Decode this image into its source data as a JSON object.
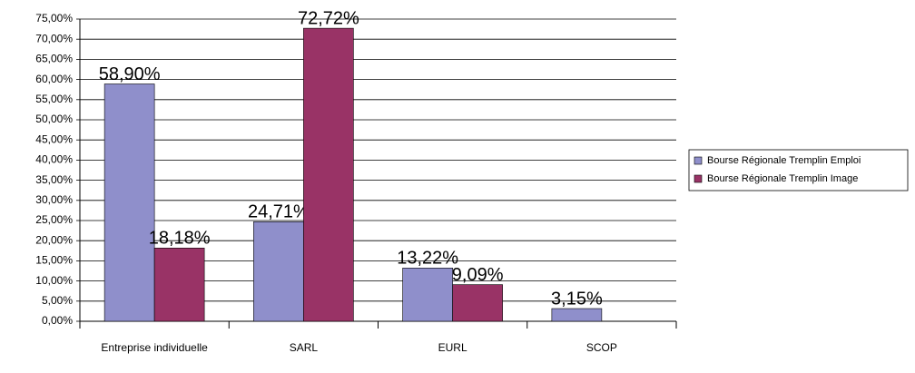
{
  "chart_data": {
    "type": "bar",
    "categories": [
      "Entreprise individuelle",
      "SARL",
      "EURL",
      "SCOP"
    ],
    "series": [
      {
        "name": "Bourse Régionale Tremplin Emploi",
        "color": "#8f8fcb",
        "values": [
          58.9,
          24.71,
          13.22,
          3.15
        ],
        "value_labels": [
          "58,90%",
          "24,71%",
          "13,22%",
          "3,15%"
        ]
      },
      {
        "name": "Bourse Régionale Tremplin Image",
        "color": "#993366",
        "values": [
          18.18,
          72.72,
          9.09,
          null
        ],
        "value_labels": [
          "18,18%",
          "72,72%",
          "9,09%",
          null
        ]
      }
    ],
    "ylim": [
      0,
      75
    ],
    "yticks": [
      {
        "value": 0,
        "label": "0,00%"
      },
      {
        "value": 5,
        "label": "5,00%"
      },
      {
        "value": 10,
        "label": "10,00%"
      },
      {
        "value": 15,
        "label": "15,00%"
      },
      {
        "value": 20,
        "label": "20,00%"
      },
      {
        "value": 25,
        "label": "25,00%"
      },
      {
        "value": 30,
        "label": "30,00%"
      },
      {
        "value": 35,
        "label": "35,00%"
      },
      {
        "value": 40,
        "label": "40,00%"
      },
      {
        "value": 45,
        "label": "45,00%"
      },
      {
        "value": 50,
        "label": "50,00%"
      },
      {
        "value": 55,
        "label": "55,00%"
      },
      {
        "value": 60,
        "label": "60,00%"
      },
      {
        "value": 65,
        "label": "65,00%"
      },
      {
        "value": 70,
        "label": "70,00%"
      },
      {
        "value": 75,
        "label": "75,00%"
      }
    ],
    "grid": true,
    "legend": "right"
  }
}
